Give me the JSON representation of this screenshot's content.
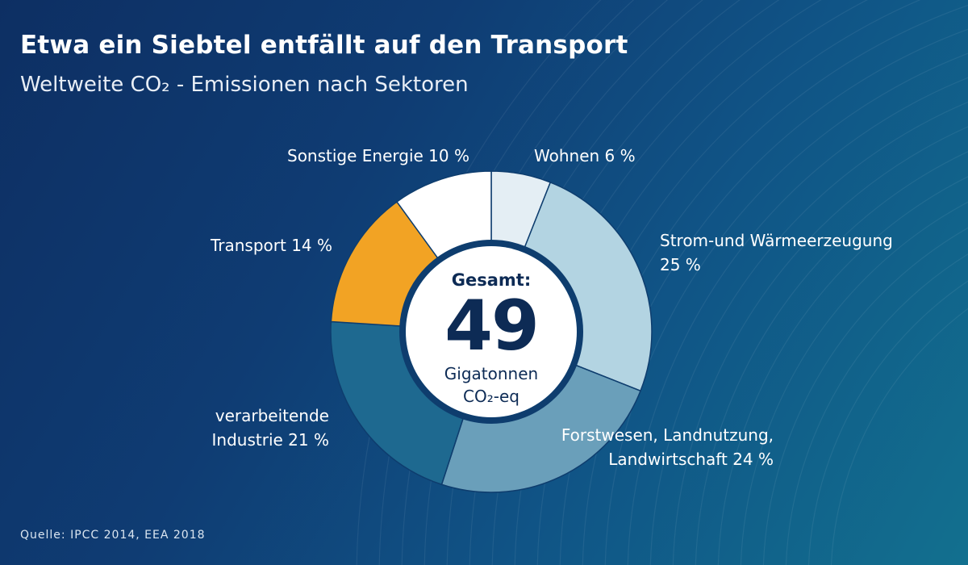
{
  "header": {
    "title": "Etwa ein Siebtel entfällt auf den Transport",
    "subtitle": "Weltweite  CO₂ - Emissionen nach Sektoren"
  },
  "center": {
    "label": "Gesamt:",
    "value": "49",
    "unit_line1": "Gigatonnen",
    "unit_line2": "CO₂-eq"
  },
  "labels": {
    "wohnen": "Wohnen 6 %",
    "strom": "Strom-und Wärmeerzeugung 25 %",
    "forst": "Forstwesen, Landnutzung, Landwirtschaft 24 %",
    "industrie": "verarbeitende Industrie 21 %",
    "transport": "Transport  14 %",
    "sonstige": "Sonstige Energie  10 %"
  },
  "source": "Quelle: IPCC 2014, EEA 2018",
  "colors": {
    "wohnen": "#e4eef4",
    "strom": "#b3d4e2",
    "forst": "#6a9fba",
    "industrie": "#1e6990",
    "transport": "#f2a324",
    "sonstige": "#ffffff",
    "center": "#ffffff",
    "ring_border": "#0e3d6e"
  },
  "chart_data": {
    "type": "pie",
    "variant": "donut",
    "start": "top, clockwise",
    "total": 49,
    "unit": "Gigatonnen CO₂-eq",
    "slices": [
      {
        "name": "Wohnen",
        "value": 6
      },
      {
        "name": "Strom-und Wärmeerzeugung",
        "value": 25
      },
      {
        "name": "Forstwesen, Landnutzung, Landwirtschaft",
        "value": 24
      },
      {
        "name": "verarbeitende Industrie",
        "value": 21
      },
      {
        "name": "Transport",
        "value": 14
      },
      {
        "name": "Sonstige Energie",
        "value": 10
      }
    ]
  }
}
